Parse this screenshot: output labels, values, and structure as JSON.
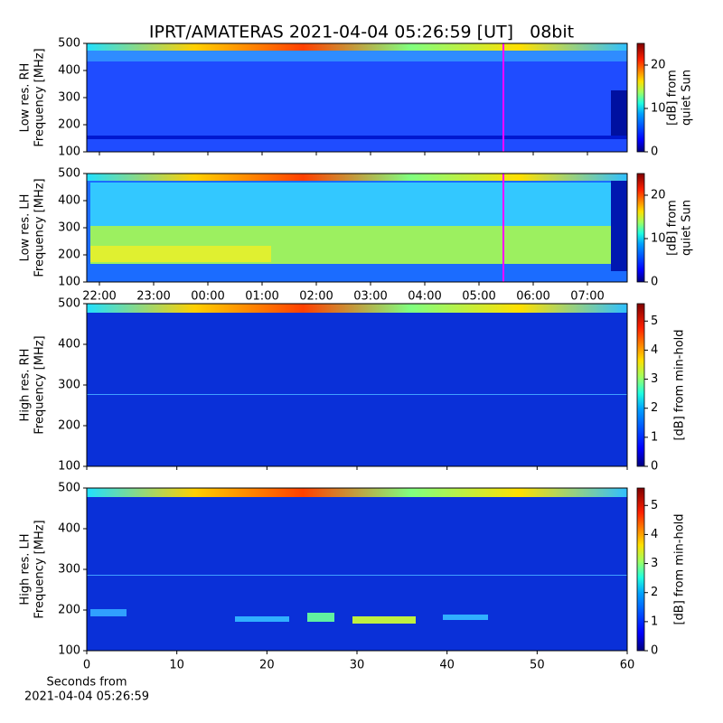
{
  "chart_data": [
    {
      "type": "heatmap",
      "title": "IPRT/AMATERAS 2021-04-04 05:26:59 [UT]   08bit",
      "ylabel": [
        "Low res. RH",
        "Frequency [MHz]"
      ],
      "ylim": [
        100,
        500
      ],
      "yticks": [
        100,
        200,
        300,
        400,
        500
      ],
      "colorbar": {
        "label": [
          "[dB] from",
          "quiet Sun"
        ],
        "lim": [
          0,
          25
        ],
        "ticks": [
          0,
          10,
          20
        ]
      }
    },
    {
      "type": "heatmap",
      "ylabel": [
        "Low res. LH",
        "Frequency [MHz]"
      ],
      "ylim": [
        100,
        500
      ],
      "yticks": [
        100,
        200,
        300,
        400,
        500
      ],
      "xlim": [
        "21:46",
        "07:44"
      ],
      "xticks": [
        "22:00",
        "23:00",
        "00:00",
        "01:00",
        "02:00",
        "03:00",
        "04:00",
        "05:00",
        "06:00",
        "07:00"
      ],
      "colorbar": {
        "label": [
          "[dB] from",
          "quiet Sun"
        ],
        "lim": [
          0,
          25
        ],
        "ticks": [
          0,
          10,
          20
        ]
      }
    },
    {
      "type": "heatmap",
      "ylabel": [
        "High res. RH",
        "Frequency [MHz]"
      ],
      "ylim": [
        100,
        500
      ],
      "yticks": [
        100,
        200,
        300,
        400,
        500
      ],
      "colorbar": {
        "label": [
          "[dB] from min-hold"
        ],
        "lim": [
          0,
          5.6
        ],
        "ticks": [
          0,
          1,
          2,
          3,
          4,
          5
        ]
      }
    },
    {
      "type": "heatmap",
      "ylabel": [
        "High res. LH",
        "Frequency [MHz]"
      ],
      "ylim": [
        100,
        500
      ],
      "yticks": [
        100,
        200,
        300,
        400,
        500
      ],
      "xlabel": [
        "Seconds from",
        "2021-04-04 05:26:59"
      ],
      "xlim": [
        0,
        60
      ],
      "xticks": [
        0,
        10,
        20,
        30,
        40,
        50,
        60
      ],
      "colorbar": {
        "label": [
          "[dB] from min-hold"
        ],
        "lim": [
          0,
          5.6
        ],
        "ticks": [
          0,
          1,
          2,
          3,
          4,
          5
        ]
      }
    }
  ]
}
